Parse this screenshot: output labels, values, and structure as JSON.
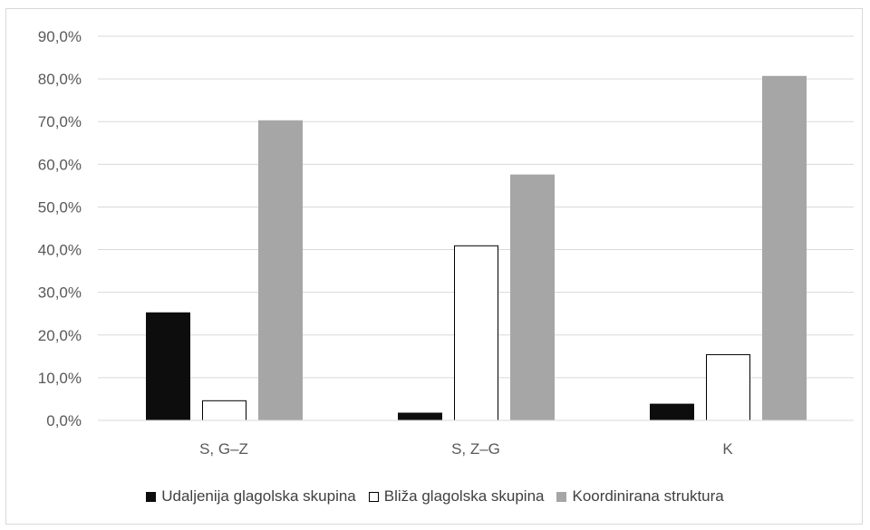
{
  "chart_data": {
    "type": "bar",
    "title": "",
    "xlabel": "",
    "ylabel": "",
    "categories": [
      "S, G–Z",
      "S, Z–G",
      "K"
    ],
    "series": [
      {
        "name": "Udaljenija glagolska skupina",
        "values": [
          25.2,
          1.7,
          3.8
        ],
        "color": "#0d0d0d",
        "stroke": "#0d0d0d"
      },
      {
        "name": "Bliža glagolska skupina",
        "values": [
          4.6,
          40.9,
          15.4
        ],
        "color": "#ffffff",
        "stroke": "#000000"
      },
      {
        "name": "Koordinirana struktura",
        "values": [
          70.2,
          57.5,
          80.6
        ],
        "color": "#a6a6a6",
        "stroke": "#a6a6a6"
      }
    ],
    "ylim": [
      0,
      90
    ],
    "ytick_step": 10,
    "ytick_labels": [
      "0,0%",
      "10,0%",
      "20,0%",
      "30,0%",
      "40,0%",
      "50,0%",
      "60,0%",
      "70,0%",
      "80,0%",
      "90,0%"
    ],
    "grid": true,
    "legend_position": "bottom"
  }
}
